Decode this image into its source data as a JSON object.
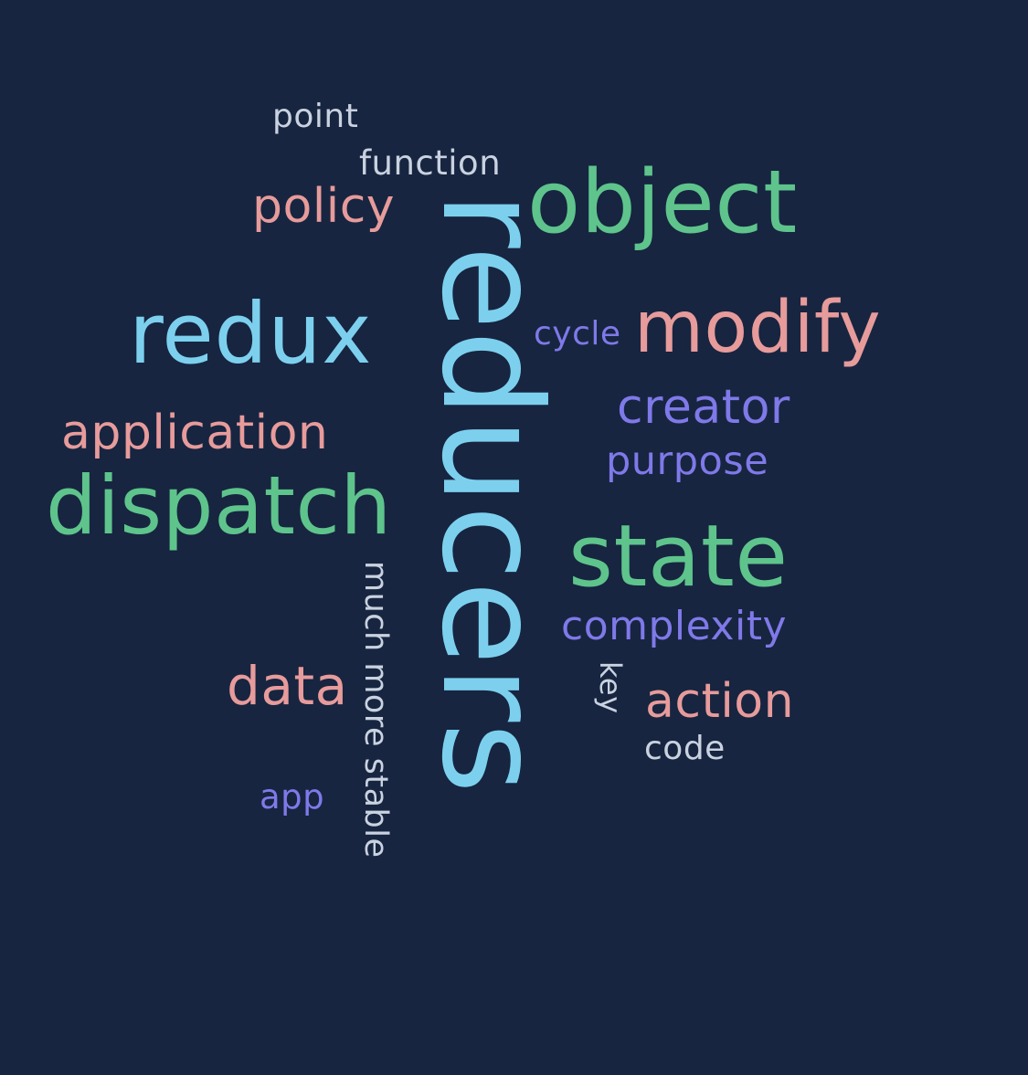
{
  "colors": {
    "background": "#172540",
    "blue": "#7cd0ee",
    "green": "#5ec48c",
    "salmon": "#e79b9b",
    "purple": "#7f79e9",
    "gray": "#c9d2e0"
  },
  "words": {
    "reducers": "reducers",
    "object": "object",
    "redux": "redux",
    "modify": "modify",
    "dispatch": "dispatch",
    "state": "state",
    "policy": "policy",
    "application": "application",
    "creator": "creator",
    "data": "data",
    "action": "action",
    "purpose": "purpose",
    "complexity": "complexity",
    "cycle": "cycle",
    "app": "app",
    "point": "point",
    "function": "function",
    "much_more_stable": "much more stable",
    "key": "key",
    "code": "code"
  }
}
